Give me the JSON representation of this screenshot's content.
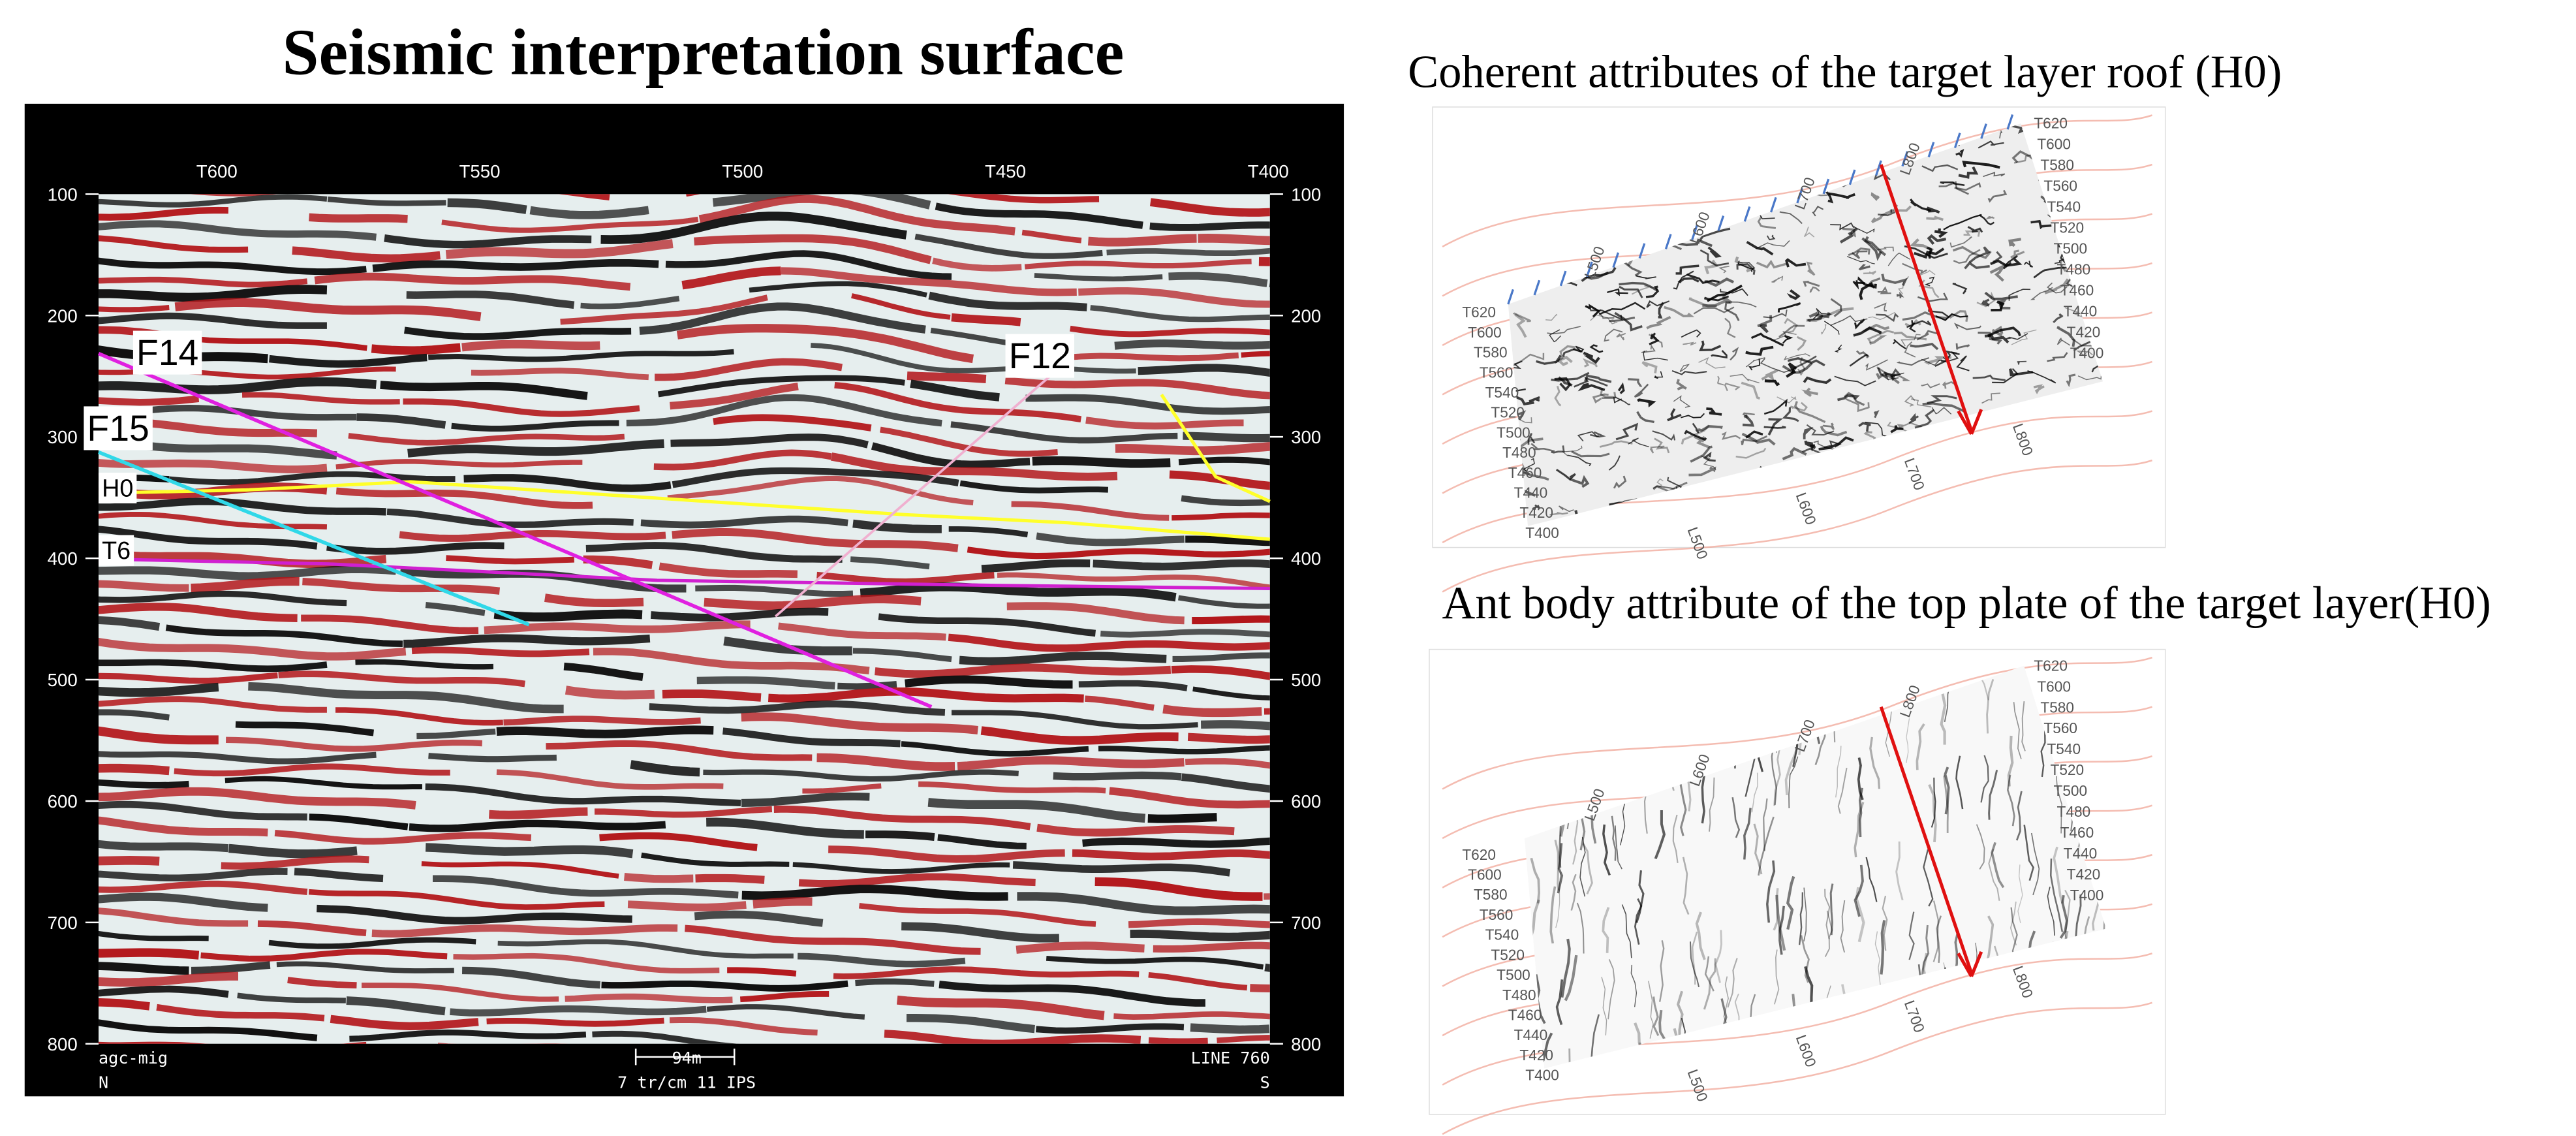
{
  "left_panel": {
    "title": "Seismic interpretation surface",
    "trace_labels": [
      "T600",
      "T550",
      "T500",
      "T450",
      "T400"
    ],
    "depth_labels": [
      100,
      200,
      300,
      400,
      500,
      600,
      700,
      800
    ],
    "faults": [
      "F14",
      "F15",
      "F12"
    ],
    "horizons": [
      "H0",
      "T6"
    ],
    "footer_left": [
      "agc-mig",
      "N"
    ],
    "scale_bar": "94m",
    "footer_center": "7 tr/cm 11 IPS",
    "footer_right": [
      "LINE 760",
      "S"
    ]
  },
  "maps": [
    {
      "title": "Coherent attributes of the target layer roof (H0)",
      "t_labels": [
        "T620",
        "T600",
        "T580",
        "T560",
        "T540",
        "T520",
        "T500",
        "T480",
        "T460",
        "T440",
        "T420",
        "T400"
      ],
      "l_labels": [
        "L500",
        "L600",
        "L700",
        "L800"
      ]
    },
    {
      "title": "Ant body attribute of the top plate of the target layer(H0)",
      "t_labels": [
        "T620",
        "T600",
        "T580",
        "T560",
        "T540",
        "T520",
        "T500",
        "T480",
        "T460",
        "T440",
        "T420",
        "T400"
      ],
      "l_labels": [
        "L500",
        "L600",
        "L700",
        "L800"
      ]
    }
  ]
}
